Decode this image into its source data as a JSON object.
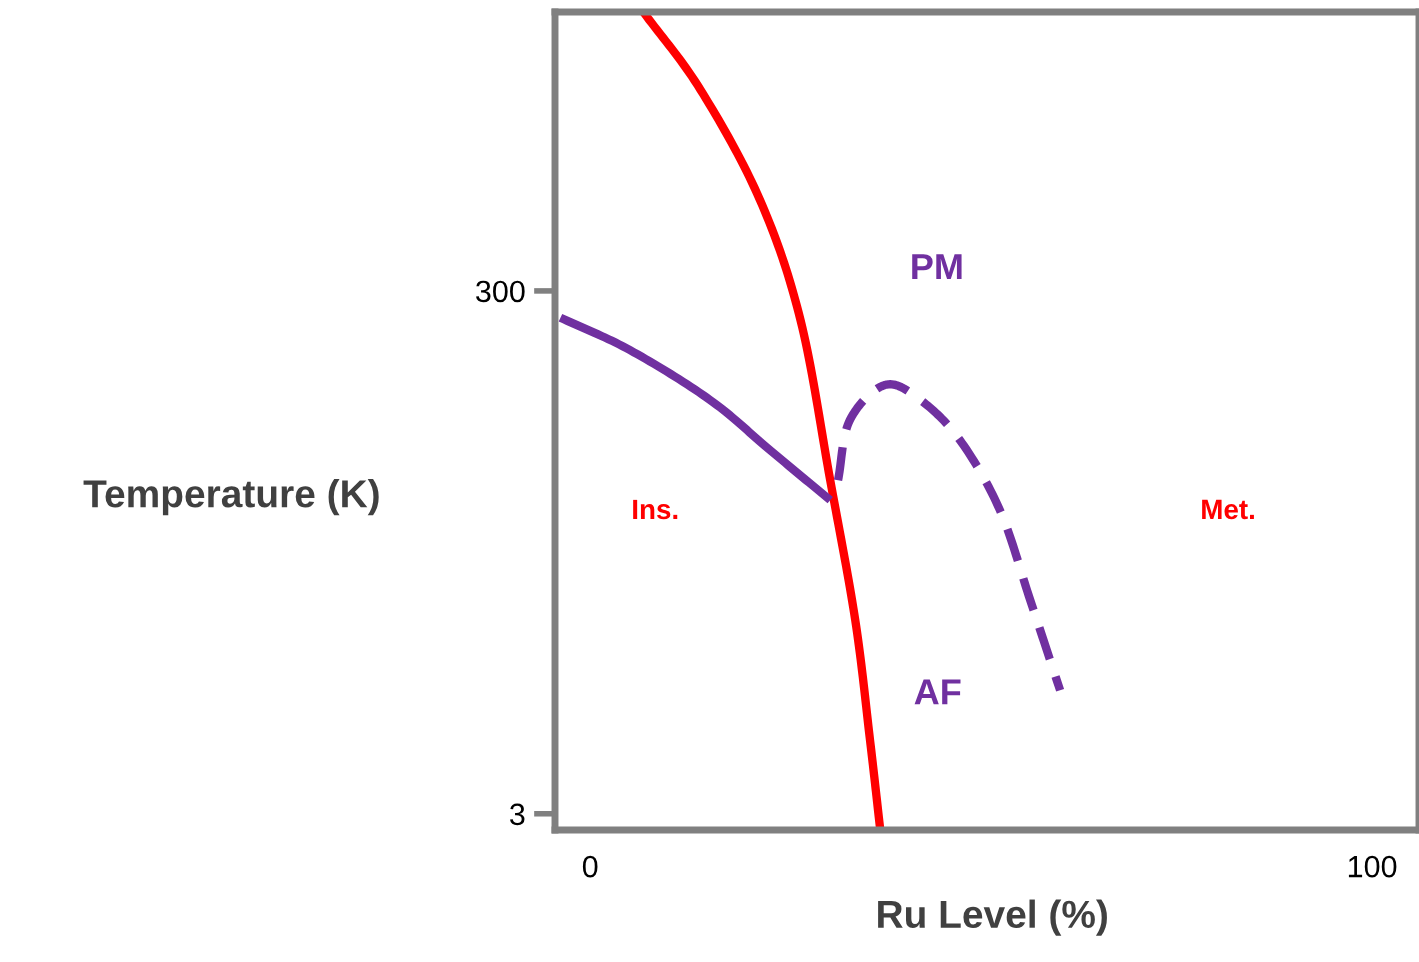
{
  "chart_data": {
    "type": "line",
    "xlabel": "Ru Level (%)",
    "ylabel": "Temperature (K)",
    "log": "y",
    "grid": false,
    "line_style": "solid",
    "marker": "none",
    "xlim": [
      -4.5,
      106
    ],
    "ylim": [
      2.6,
      3500
    ],
    "xticks": [
      0,
      100
    ],
    "yticks": [
      3,
      300
    ],
    "series": [
      {
        "color": "#ff0000",
        "x": [
          6.8,
          14.1,
          21.7,
          26.9,
          30.7,
          33.9,
          35.8,
          37.1
        ],
        "values": [
          3500,
          1766,
          670,
          232,
          56.6,
          16.5,
          5.7,
          2.6
        ]
      },
      {
        "color": "#7030a0",
        "x": [
          -3.8,
          5.1,
          15.3,
          23.0,
          30.7
        ],
        "values": [
          237,
          178,
          115,
          73.8,
          47.5
        ]
      },
      {
        "color": "#7030a0",
        "line_style": "dashed",
        "x": [
          31.7,
          33.2,
          37.7,
          42.2,
          47.3,
          52.4,
          56.3,
          60.1
        ],
        "values": [
          56.6,
          96,
          131,
          115,
          80.5,
          43.5,
          19.6,
          8.9
        ]
      }
    ],
    "annotations": [
      "PM",
      "Ins.",
      "Met.",
      "AF"
    ]
  }
}
